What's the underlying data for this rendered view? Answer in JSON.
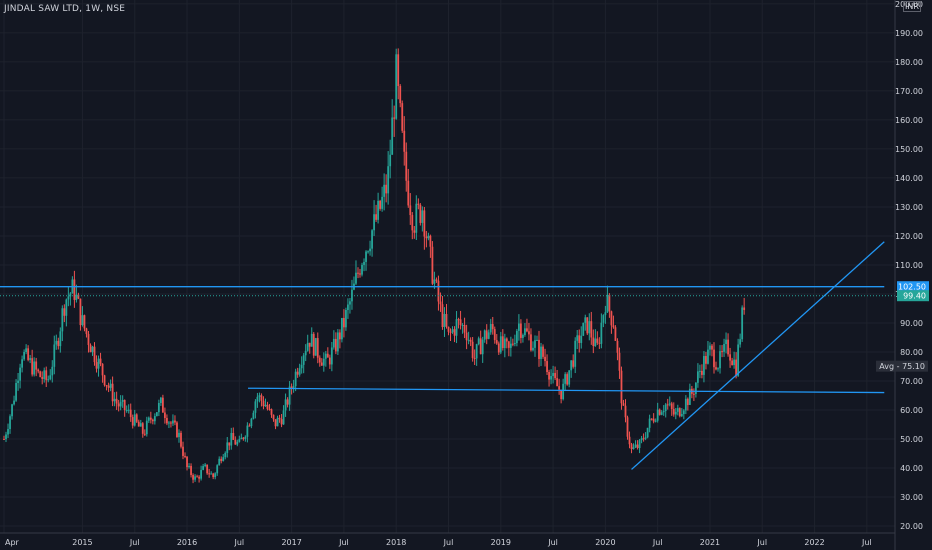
{
  "chart_data": {
    "type": "candlestick",
    "title": "JINDAL SAW LTD, 1W, NSE",
    "unit": "INR",
    "x_ticks": [
      "Apr",
      "2015",
      "Jul",
      "2016",
      "Jul",
      "2017",
      "Jul",
      "2018",
      "Jul",
      "2019",
      "Jul",
      "2020",
      "Jul",
      "2021",
      "Jul",
      "2022",
      "Jul"
    ],
    "y_ticks": [
      "20.00",
      "30.00",
      "40.00",
      "50.00",
      "60.00",
      "70.00",
      "80.00",
      "90.00",
      "100.00",
      "110.00",
      "120.00",
      "130.00",
      "140.00",
      "150.00",
      "160.00",
      "170.00",
      "180.00",
      "190.00",
      "200.00"
    ],
    "ylim": [
      20,
      201
    ],
    "price_labels": {
      "resistance": "102.50",
      "last_close": "99.40",
      "avg": "Avg - 75.10"
    },
    "series": [
      {
        "kind": "weekly-close",
        "points": [
          [
            "2014-04",
            50
          ],
          [
            "2014-05",
            62
          ],
          [
            "2014-06",
            80
          ],
          [
            "2014-07",
            76
          ],
          [
            "2014-08",
            72
          ],
          [
            "2014-09",
            70
          ],
          [
            "2014-10",
            82
          ],
          [
            "2014-11",
            98
          ],
          [
            "2014-12",
            102
          ],
          [
            "2015-01",
            90
          ],
          [
            "2015-02",
            82
          ],
          [
            "2015-03",
            75
          ],
          [
            "2015-04",
            68
          ],
          [
            "2015-05",
            62
          ],
          [
            "2015-06",
            60
          ],
          [
            "2015-07",
            56
          ],
          [
            "2015-08",
            52
          ],
          [
            "2015-09",
            58
          ],
          [
            "2015-10",
            62
          ],
          [
            "2015-11",
            56
          ],
          [
            "2015-12",
            52
          ],
          [
            "2016-01",
            40
          ],
          [
            "2016-02",
            36
          ],
          [
            "2016-03",
            40
          ],
          [
            "2016-04",
            37
          ],
          [
            "2016-05",
            45
          ],
          [
            "2016-06",
            50
          ],
          [
            "2016-07",
            48
          ],
          [
            "2016-08",
            55
          ],
          [
            "2016-09",
            65
          ],
          [
            "2016-10",
            62
          ],
          [
            "2016-11",
            55
          ],
          [
            "2016-12",
            58
          ],
          [
            "2017-01",
            68
          ],
          [
            "2017-02",
            78
          ],
          [
            "2017-03",
            85
          ],
          [
            "2017-04",
            80
          ],
          [
            "2017-05",
            76
          ],
          [
            "2017-06",
            82
          ],
          [
            "2017-07",
            90
          ],
          [
            "2017-08",
            100
          ],
          [
            "2017-09",
            112
          ],
          [
            "2017-10",
            120
          ],
          [
            "2017-11",
            128
          ],
          [
            "2017-12",
            138
          ],
          [
            "2018-01",
            175
          ],
          [
            "2018-02",
            142
          ],
          [
            "2018-03",
            125
          ],
          [
            "2018-04",
            130
          ],
          [
            "2018-05",
            110
          ],
          [
            "2018-06",
            95
          ],
          [
            "2018-07",
            85
          ],
          [
            "2018-08",
            90
          ],
          [
            "2018-09",
            88
          ],
          [
            "2018-10",
            78
          ],
          [
            "2018-11",
            85
          ],
          [
            "2018-12",
            88
          ],
          [
            "2019-01",
            82
          ],
          [
            "2019-02",
            80
          ],
          [
            "2019-03",
            90
          ],
          [
            "2019-04",
            86
          ],
          [
            "2019-05",
            82
          ],
          [
            "2019-06",
            78
          ],
          [
            "2019-07",
            70
          ],
          [
            "2019-08",
            66
          ],
          [
            "2019-09",
            75
          ],
          [
            "2019-10",
            85
          ],
          [
            "2019-11",
            90
          ],
          [
            "2019-12",
            80
          ],
          [
            "2020-01",
            98
          ],
          [
            "2020-02",
            90
          ],
          [
            "2020-03",
            60
          ],
          [
            "2020-04",
            46
          ],
          [
            "2020-05",
            48
          ],
          [
            "2020-06",
            55
          ],
          [
            "2020-07",
            60
          ],
          [
            "2020-08",
            62
          ],
          [
            "2020-09",
            58
          ],
          [
            "2020-10",
            62
          ],
          [
            "2020-11",
            66
          ],
          [
            "2020-12",
            75
          ],
          [
            "2021-01",
            80
          ],
          [
            "2021-02",
            76
          ],
          [
            "2021-03",
            82
          ],
          [
            "2021-04",
            75
          ],
          [
            "2021-05",
            99.4
          ]
        ]
      }
    ],
    "trend_lines": [
      {
        "name": "resistance",
        "from": [
          "2014-03",
          102.5
        ],
        "to": [
          "2022-09",
          102.5
        ]
      },
      {
        "name": "support",
        "from": [
          "2016-08",
          67.5
        ],
        "to": [
          "2022-09",
          66
        ]
      },
      {
        "name": "rising-trendline",
        "from": [
          "2020-04",
          39.5
        ],
        "to": [
          "2022-09",
          118
        ]
      }
    ],
    "colors": {
      "background": "#131722",
      "up": "#26a69a",
      "down": "#ef5350",
      "line": "#2196f3",
      "last_price": "#26a69a",
      "text": "#d1d4dc",
      "grid": "#1e222d"
    },
    "grid": true,
    "legend": "none"
  }
}
